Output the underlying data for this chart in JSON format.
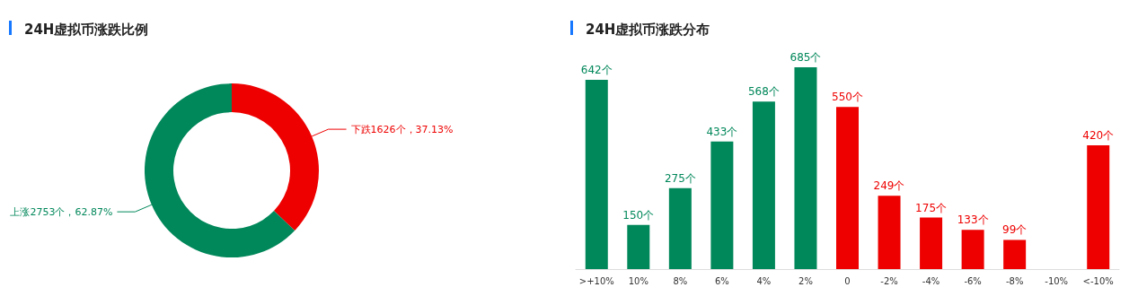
{
  "chart_data": [
    {
      "type": "donut",
      "title": "24H虚拟币涨跌比例",
      "categories": [
        "下跌",
        "上涨"
      ],
      "values": [
        1626,
        2753
      ],
      "colors": [
        "#ee0000",
        "#00875a"
      ],
      "value_labels": [
        "1626个，37.13%",
        "2753个，62.87%"
      ],
      "legend": false
    },
    {
      "type": "bar",
      "title": "24H虚拟币涨跌分布",
      "categories": [
        ">+10%",
        "10%",
        "8%",
        "6%",
        "4%",
        "2%",
        "0",
        "-2%",
        "-4%",
        "-6%",
        "-8%",
        "-10%",
        "<-10%"
      ],
      "values": [
        642,
        150,
        275,
        433,
        568,
        685,
        550,
        249,
        175,
        133,
        99,
        null,
        420
      ],
      "colors": [
        "#00875a",
        "#00875a",
        "#00875a",
        "#00875a",
        "#00875a",
        "#00875a",
        "#ee0000",
        "#ee0000",
        "#ee0000",
        "#ee0000",
        "#ee0000",
        "#ee0000",
        "#ee0000"
      ],
      "value_labels": [
        "642个",
        "150个",
        "275个",
        "433个",
        "568个",
        "685个",
        "550个",
        "249个",
        "175个",
        "133个",
        "99个",
        null,
        "420个"
      ],
      "tick_labels": "x",
      "grid": false,
      "legend": false
    }
  ]
}
